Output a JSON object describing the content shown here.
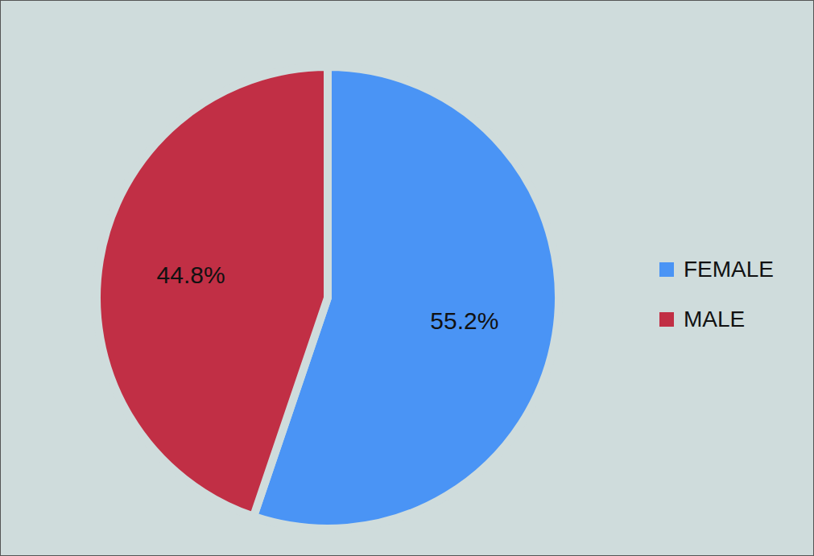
{
  "chart_data": {
    "type": "pie",
    "categories": [
      "FEMALE",
      "MALE"
    ],
    "values": [
      55.2,
      44.8
    ],
    "value_labels": [
      "55.2%",
      "44.8%"
    ],
    "colors": [
      "#4a94f5",
      "#c12f45"
    ],
    "legend": "right",
    "data_labels": true
  }
}
